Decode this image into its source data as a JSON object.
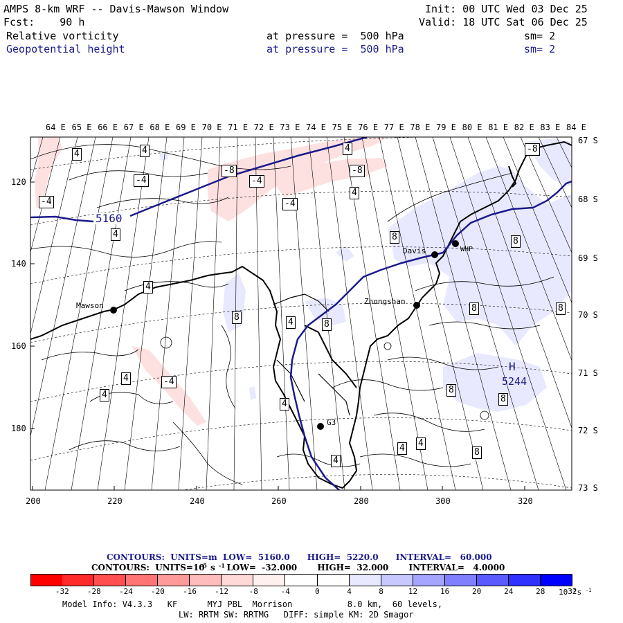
{
  "header": {
    "title": "AMPS 8-km WRF -- Davis-Mawson Window",
    "init": "Init: 00 UTC Wed 03 Dec 25",
    "fcst": "Fcst:    90 h",
    "valid": "Valid: 18 UTC Sat 06 Dec 25",
    "field1": "Relative vorticity",
    "field1_level": "at pressure =  500 hPa",
    "field1_sm": "sm= 2",
    "field2": "Geopotential height",
    "field2_level": "at pressure =  500 hPa",
    "field2_sm": "sm= 2"
  },
  "map": {
    "lon_labels": [
      "64 E",
      "65 E",
      "66 E",
      "67 E",
      "68 E",
      "69 E",
      "70 E",
      "71 E",
      "72 E",
      "73 E",
      "74 E",
      "75 E",
      "76 E",
      "77 E",
      "78 E",
      "79 E",
      "80 E",
      "81 E",
      "82 E",
      "83 E",
      "84 E"
    ],
    "lat_labels": [
      "67 S",
      "68 S",
      "69 S",
      "70 S",
      "71 S",
      "72 S",
      "73 S"
    ],
    "y_ticks": [
      "120",
      "140",
      "160",
      "180"
    ],
    "x_ticks": [
      "200",
      "220",
      "240",
      "260",
      "280",
      "300",
      "320"
    ],
    "stations": [
      "Mawson",
      "Davis",
      "WHP",
      "Zhongshan",
      "G3"
    ],
    "height_labels": [
      "5160",
      "H",
      "5244"
    ],
    "vort_labels": [
      "-4",
      "-4",
      "-4",
      "-4",
      "-4",
      "-8",
      "-8",
      "-8",
      "4",
      "4",
      "4",
      "4",
      "4",
      "4",
      "4",
      "4",
      "4",
      "4",
      "4",
      "4",
      "4",
      "8",
      "8",
      "8",
      "8",
      "8",
      "8",
      "8",
      "8",
      "8"
    ]
  },
  "legend": {
    "line1": "CONTOURS:  UNITS=m  LOW=  5160.0      HIGH=  5220.0      INTERVAL=   60.000",
    "line2": "CONTOURS:  UNITS=10  s    LOW=  -32.000       HIGH=  32.000       INTERVAL=   4.0000",
    "exp1": "-5",
    "exp2": "-1",
    "colorbar_values": [
      "-32",
      "-28",
      "-24",
      "-20",
      "-16",
      "-12",
      "-8",
      "-4",
      "0",
      "4",
      "8",
      "12",
      "16",
      "20",
      "24",
      "28",
      "32"
    ],
    "colorbar_unit": "10  s",
    "colorbar_colors": [
      "#ff0000",
      "#ff2a2a",
      "#ff4f4f",
      "#ff7575",
      "#ff9a9a",
      "#ffbcbc",
      "#ffd8d8",
      "#fff0f0",
      "#ffffff",
      "#ffffff",
      "#e8e8ff",
      "#c8c8ff",
      "#a5a5ff",
      "#8080ff",
      "#5a5aff",
      "#3030ff",
      "#0000ff"
    ]
  },
  "footer": {
    "line1": "Model Info: V4.3.3   KF      MYJ PBL  Morrison           8.0 km,  60 levels,",
    "line2": "LW: RRTM SW: RRTMG   DIFF: simple KM: 2D Smagor"
  }
}
